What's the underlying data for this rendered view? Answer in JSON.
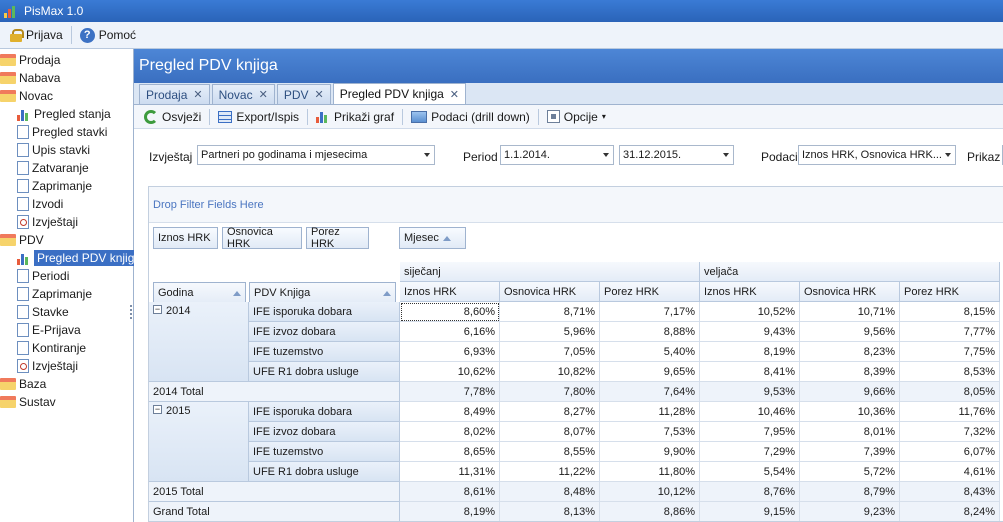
{
  "app": {
    "title": "PisMax 1.0"
  },
  "menu": {
    "login": "Prijava",
    "help": "Pomoć"
  },
  "sidebar": {
    "items": [
      {
        "label": "Prodaja",
        "icon": "folder-icon",
        "level": 0
      },
      {
        "label": "Nabava",
        "icon": "folder-icon",
        "level": 0
      },
      {
        "label": "Novac",
        "icon": "folder-icon",
        "level": 0
      },
      {
        "label": "Pregled stanja",
        "icon": "chart-icon",
        "level": 1
      },
      {
        "label": "Pregled stavki",
        "icon": "document-icon",
        "level": 1
      },
      {
        "label": "Upis stavki",
        "icon": "document-icon",
        "level": 1
      },
      {
        "label": "Zatvaranje",
        "icon": "document-icon",
        "level": 1
      },
      {
        "label": "Zaprimanje",
        "icon": "document-icon",
        "level": 1
      },
      {
        "label": "Izvodi",
        "icon": "document-icon",
        "level": 1
      },
      {
        "label": "Izvještaji",
        "icon": "report-icon",
        "level": 1
      },
      {
        "label": "PDV",
        "icon": "folder-icon",
        "level": 0
      },
      {
        "label": "Pregled PDV knjiga",
        "icon": "chart-icon",
        "level": 1,
        "selected": true
      },
      {
        "label": "Periodi",
        "icon": "document-icon",
        "level": 1
      },
      {
        "label": "Zaprimanje",
        "icon": "document-icon",
        "level": 1
      },
      {
        "label": "Stavke",
        "icon": "document-icon",
        "level": 1
      },
      {
        "label": "E-Prijava",
        "icon": "document-icon",
        "level": 1
      },
      {
        "label": "Kontiranje",
        "icon": "document-icon",
        "level": 1
      },
      {
        "label": "Izvještaji",
        "icon": "report-icon",
        "level": 1
      },
      {
        "label": "Baza",
        "icon": "folder-icon",
        "level": 0
      },
      {
        "label": "Sustav",
        "icon": "folder-icon",
        "level": 0
      }
    ]
  },
  "main": {
    "title": "Pregled PDV knjiga",
    "tabs": [
      {
        "label": "Prodaja"
      },
      {
        "label": "Novac"
      },
      {
        "label": "PDV"
      },
      {
        "label": "Pregled PDV knjiga",
        "active": true
      }
    ],
    "toolbar": {
      "refresh": "Osvježi",
      "export": "Export/Ispis",
      "chart": "Prikaži graf",
      "drilldown": "Podaci (drill down)",
      "options": "Opcije"
    },
    "filters": {
      "report_label": "Izvještaj",
      "report_value": "Partneri po godinama i mjesecima",
      "period_label": "Period",
      "date_from": "1.1.2014.",
      "date_to": "31.12.2015.",
      "data_label": "Podaci",
      "data_value": "Iznos HRK, Osnovica HRK...",
      "show_label": "Prikaz"
    }
  },
  "pivot": {
    "drop_filter": "Drop Filter Fields Here",
    "data_fields": [
      "Iznos HRK",
      "Osnovica HRK",
      "Porez HRK"
    ],
    "column_field": "Mjesec",
    "row_fields": [
      "Godina",
      "PDV Knjiga"
    ],
    "months": [
      "siječanj",
      "veljača"
    ],
    "measures": [
      "Iznos HRK",
      "Osnovica HRK",
      "Porez HRK",
      "Iznos HRK",
      "Osnovica HRK",
      "Porez HRK"
    ],
    "rows": [
      {
        "year": "2014",
        "book": "IFE isporuka dobara",
        "v": [
          "8,60%",
          "8,71%",
          "7,17%",
          "10,52%",
          "10,71%",
          "8,15%"
        ]
      },
      {
        "year": "",
        "book": "IFE izvoz dobara",
        "v": [
          "6,16%",
          "5,96%",
          "8,88%",
          "9,43%",
          "9,56%",
          "7,77%"
        ]
      },
      {
        "year": "",
        "book": "IFE tuzemstvo",
        "v": [
          "6,93%",
          "7,05%",
          "5,40%",
          "8,19%",
          "8,23%",
          "7,75%"
        ]
      },
      {
        "year": "",
        "book": "UFE R1 dobra usluge",
        "v": [
          "10,62%",
          "10,82%",
          "9,65%",
          "8,41%",
          "8,39%",
          "8,53%"
        ]
      },
      {
        "total": "2014 Total",
        "v": [
          "7,78%",
          "7,80%",
          "7,64%",
          "9,53%",
          "9,66%",
          "8,05%"
        ]
      },
      {
        "year": "2015",
        "book": "IFE isporuka dobara",
        "v": [
          "8,49%",
          "8,27%",
          "11,28%",
          "10,46%",
          "10,36%",
          "11,76%"
        ]
      },
      {
        "year": "",
        "book": "IFE izvoz dobara",
        "v": [
          "8,02%",
          "8,07%",
          "7,53%",
          "7,95%",
          "8,01%",
          "7,32%"
        ]
      },
      {
        "year": "",
        "book": "IFE tuzemstvo",
        "v": [
          "8,65%",
          "8,55%",
          "9,90%",
          "7,29%",
          "7,39%",
          "6,07%"
        ]
      },
      {
        "year": "",
        "book": "UFE R1 dobra usluge",
        "v": [
          "11,31%",
          "11,22%",
          "11,80%",
          "5,54%",
          "5,72%",
          "4,61%"
        ]
      },
      {
        "total": "2015 Total",
        "v": [
          "8,61%",
          "8,48%",
          "10,12%",
          "8,76%",
          "8,79%",
          "8,43%"
        ]
      },
      {
        "total": "Grand Total",
        "v": [
          "8,19%",
          "8,13%",
          "8,86%",
          "9,15%",
          "9,23%",
          "8,24%"
        ]
      }
    ]
  }
}
